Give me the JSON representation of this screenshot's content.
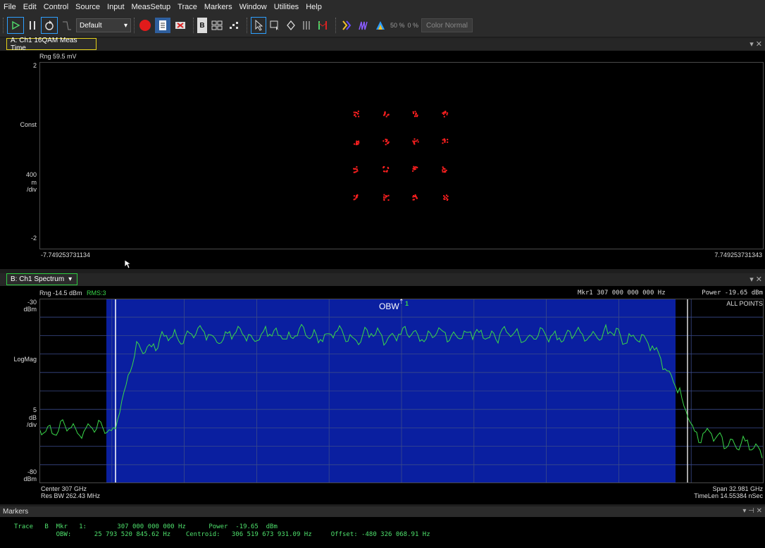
{
  "menu": [
    "File",
    "Edit",
    "Control",
    "Source",
    "Input",
    "MeasSetup",
    "Trace",
    "Markers",
    "Window",
    "Utilities",
    "Help"
  ],
  "toolbar": {
    "preset_label": "Default",
    "pct1": "50 %",
    "pct2": "0 %",
    "color_mode": "Color Normal"
  },
  "panel_a": {
    "tab": "A: Ch1 16QAM Meas Time",
    "rng": "Rng 59.5 mV",
    "y_top": "2",
    "y_label": "Const",
    "scale_value": "400",
    "scale_unit1": "m",
    "scale_unit2": "/div",
    "y_bottom": "-2",
    "x_left": "-7.749253731134",
    "x_right": "7.749253731343",
    "constellation_levels": [
      -3,
      -1,
      1,
      3
    ]
  },
  "panel_b": {
    "tab": "B: Ch1 Spectrum",
    "rng": "Rng -14.5 dBm",
    "rms": "RMS:3",
    "marker_readout": "Mkr1  307 000 000 000 Hz",
    "power_readout": "Power  -19.65  dBm",
    "all_points": "ALL POINTS",
    "y_top_value": "-30",
    "y_top_unit": "dBm",
    "y_label": "LogMag",
    "scale_value": "5",
    "scale_unit1": "dB",
    "scale_unit2": "/div",
    "y_bottom_value": "-80",
    "y_bottom_unit": "dBm",
    "obw_label": "OBW",
    "marker_number": "1",
    "center": "Center 307 GHz",
    "res_bw": "Res BW 262.43 MHz",
    "span": "Span 32.981 GHz",
    "timelen": "TimeLen 14.55384 nSec"
  },
  "markers": {
    "title": "Markers",
    "line1": "Trace   B  Mkr   1:        307 000 000 000 Hz      Power  -19.65  dBm",
    "line2": "           OBW:      25 793 520 845.62 Hz    Centroid:   306 519 673 931.09 Hz     Offset: -480 326 068.91 Hz"
  },
  "colors": {
    "trace": "#39d84a",
    "constellation": "#ff2020",
    "obw_fill": "#0a1fa0",
    "active_border_a": "#e5d21a",
    "active_border_b": "#2ecc40"
  }
}
